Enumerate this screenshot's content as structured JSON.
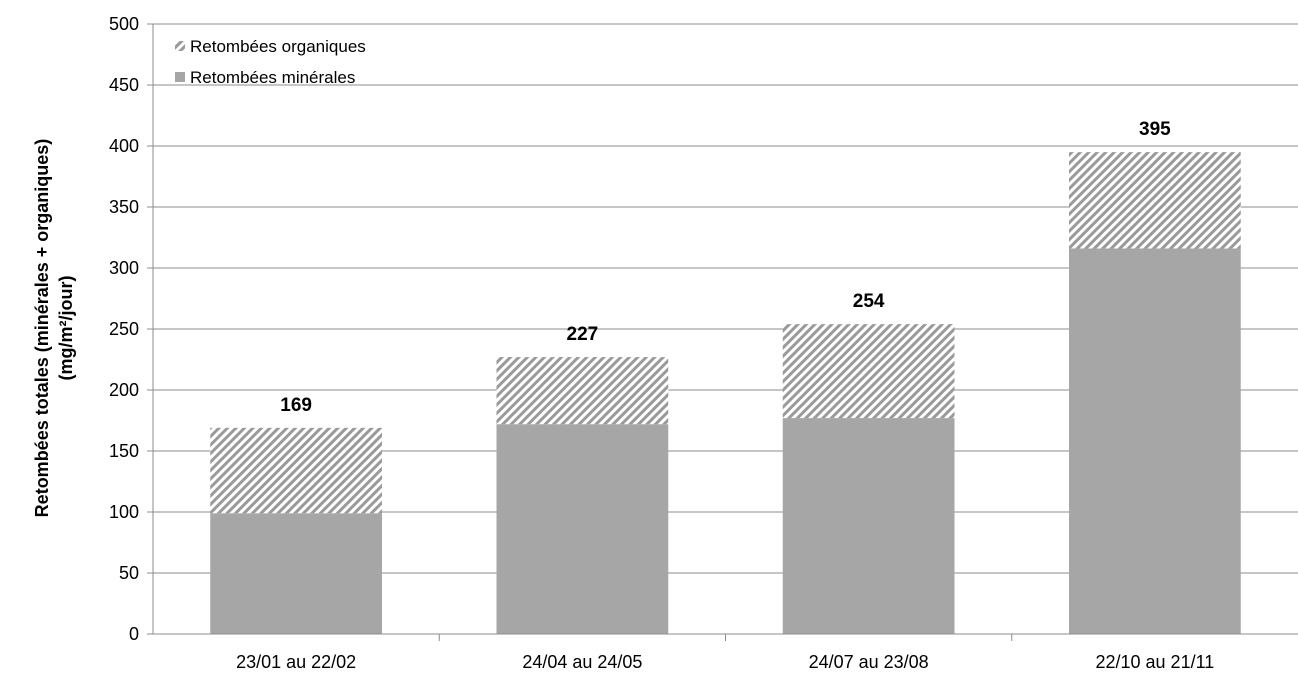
{
  "chart_data": {
    "type": "bar",
    "stacked": true,
    "categories": [
      "23/01 au 22/02",
      "24/04 au 24/05",
      "24/07 au 23/08",
      "22/10 au 21/11"
    ],
    "series": [
      {
        "name": "Retombées minérales",
        "values": [
          99,
          172,
          177,
          316
        ],
        "color": "#a6a6a6",
        "pattern": "solid"
      },
      {
        "name": "Retombées organiques",
        "values": [
          70,
          55,
          77,
          79
        ],
        "color": "#a6a6a6",
        "pattern": "diagonal-hatch"
      }
    ],
    "totals": [
      "169",
      "227",
      "254",
      "395"
    ],
    "ylabel_line1": "Retombées totales (minérales + organiques)",
    "ylabel_line2": "(mg/m²/jour)",
    "ylim": [
      0,
      500
    ],
    "yticks": [
      "0",
      "50",
      "100",
      "150",
      "200",
      "250",
      "300",
      "350",
      "400",
      "450",
      "500"
    ],
    "grid": true,
    "legend_position": "top-left"
  }
}
